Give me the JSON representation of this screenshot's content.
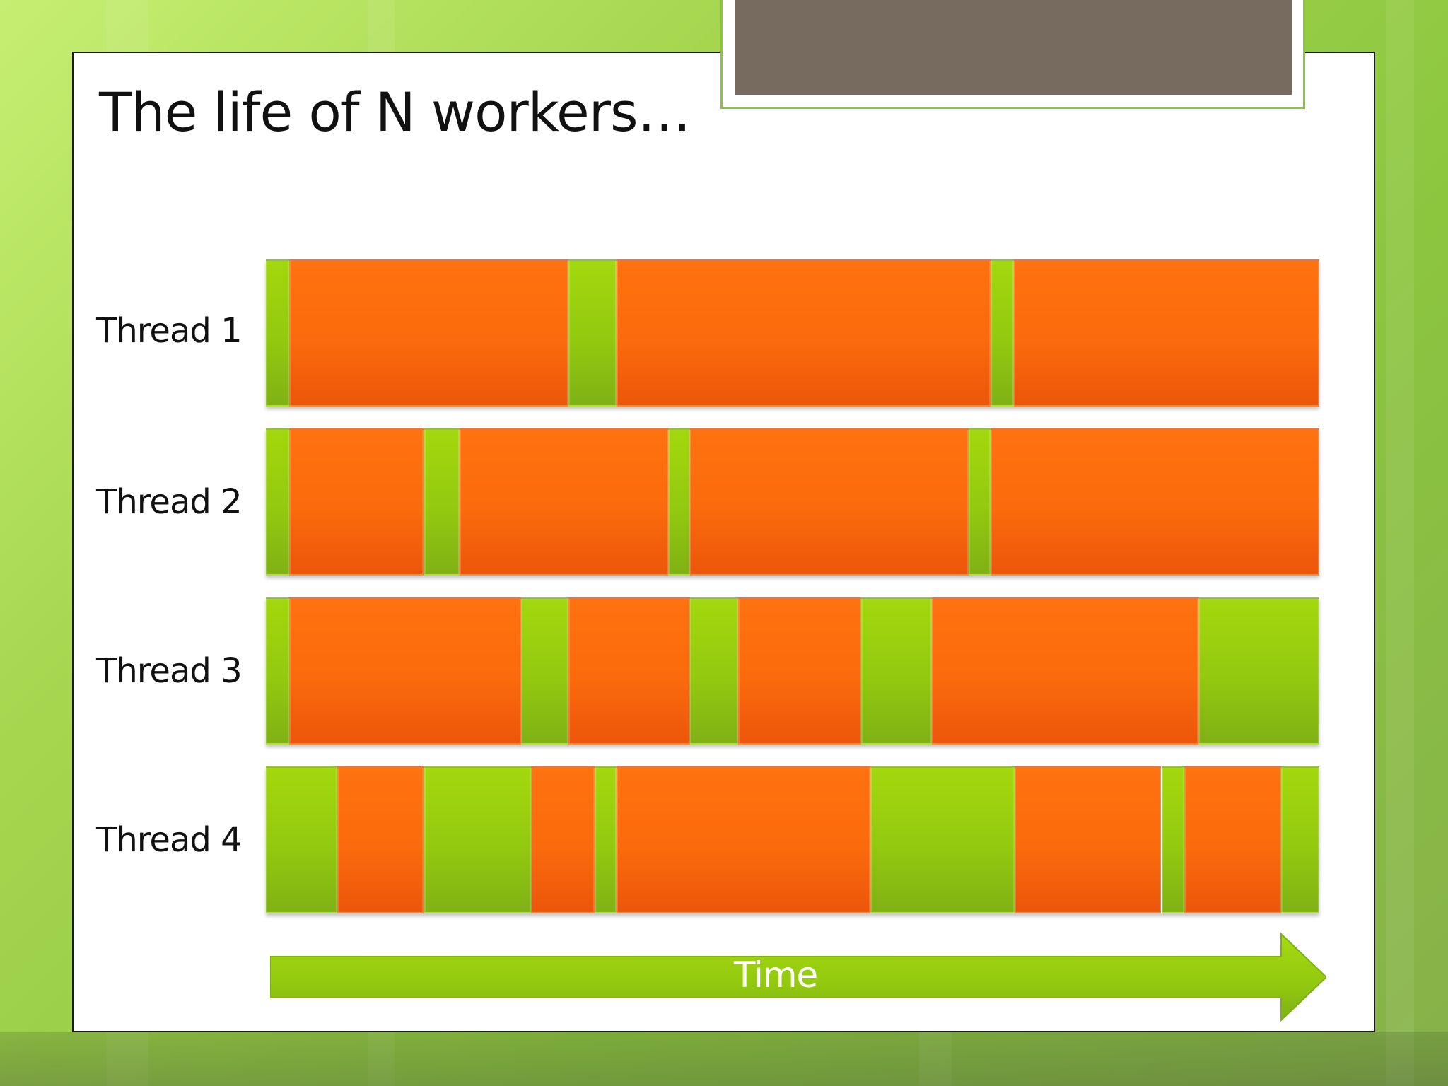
{
  "slide": {
    "title": "The life of N workers…"
  },
  "threads": [
    {
      "label": "Thread 1",
      "segments": [
        {
          "state": "idle",
          "start": 0,
          "end": 0.022
        },
        {
          "state": "working",
          "start": 0.022,
          "end": 0.287
        },
        {
          "state": "idle",
          "start": 0.287,
          "end": 0.333
        },
        {
          "state": "working",
          "start": 0.333,
          "end": 0.688
        },
        {
          "state": "idle",
          "start": 0.688,
          "end": 0.71
        },
        {
          "state": "working",
          "start": 0.71,
          "end": 1
        }
      ]
    },
    {
      "label": "Thread 2",
      "segments": [
        {
          "state": "idle",
          "start": 0,
          "end": 0.022
        },
        {
          "state": "working",
          "start": 0.022,
          "end": 0.15
        },
        {
          "state": "idle",
          "start": 0.15,
          "end": 0.184
        },
        {
          "state": "working",
          "start": 0.184,
          "end": 0.382
        },
        {
          "state": "idle",
          "start": 0.382,
          "end": 0.403
        },
        {
          "state": "working",
          "start": 0.403,
          "end": 0.667
        },
        {
          "state": "idle",
          "start": 0.667,
          "end": 0.688
        },
        {
          "state": "working",
          "start": 0.688,
          "end": 1
        }
      ]
    },
    {
      "label": "Thread 3",
      "segments": [
        {
          "state": "idle",
          "start": 0,
          "end": 0.022
        },
        {
          "state": "working",
          "start": 0.022,
          "end": 0.242
        },
        {
          "state": "idle",
          "start": 0.242,
          "end": 0.287
        },
        {
          "state": "working",
          "start": 0.287,
          "end": 0.403
        },
        {
          "state": "idle",
          "start": 0.403,
          "end": 0.448
        },
        {
          "state": "working",
          "start": 0.448,
          "end": 0.565
        },
        {
          "state": "idle",
          "start": 0.565,
          "end": 0.632
        },
        {
          "state": "working",
          "start": 0.632,
          "end": 0.885
        },
        {
          "state": "idle",
          "start": 0.885,
          "end": 1
        }
      ]
    },
    {
      "label": "Thread 4",
      "segments": [
        {
          "state": "idle",
          "start": 0,
          "end": 0.068
        },
        {
          "state": "working",
          "start": 0.068,
          "end": 0.15
        },
        {
          "state": "idle",
          "start": 0.15,
          "end": 0.252
        },
        {
          "state": "working",
          "start": 0.252,
          "end": 0.312
        },
        {
          "state": "idle",
          "start": 0.312,
          "end": 0.333
        },
        {
          "state": "working",
          "start": 0.333,
          "end": 0.574
        },
        {
          "state": "idle",
          "start": 0.574,
          "end": 0.711
        },
        {
          "state": "working",
          "start": 0.711,
          "end": 0.85
        },
        {
          "state": "idle",
          "start": 0.85,
          "end": 0.872
        },
        {
          "state": "working",
          "start": 0.872,
          "end": 0.964
        },
        {
          "state": "idle",
          "start": 0.964,
          "end": 1
        }
      ]
    }
  ],
  "timeline": {
    "label": "Time"
  },
  "colors": {
    "working": "#fb6a0c",
    "idle": "#93c90f",
    "background": "#a5d64e",
    "header_panel": "#766b5e",
    "arrow": "#93c90f"
  }
}
